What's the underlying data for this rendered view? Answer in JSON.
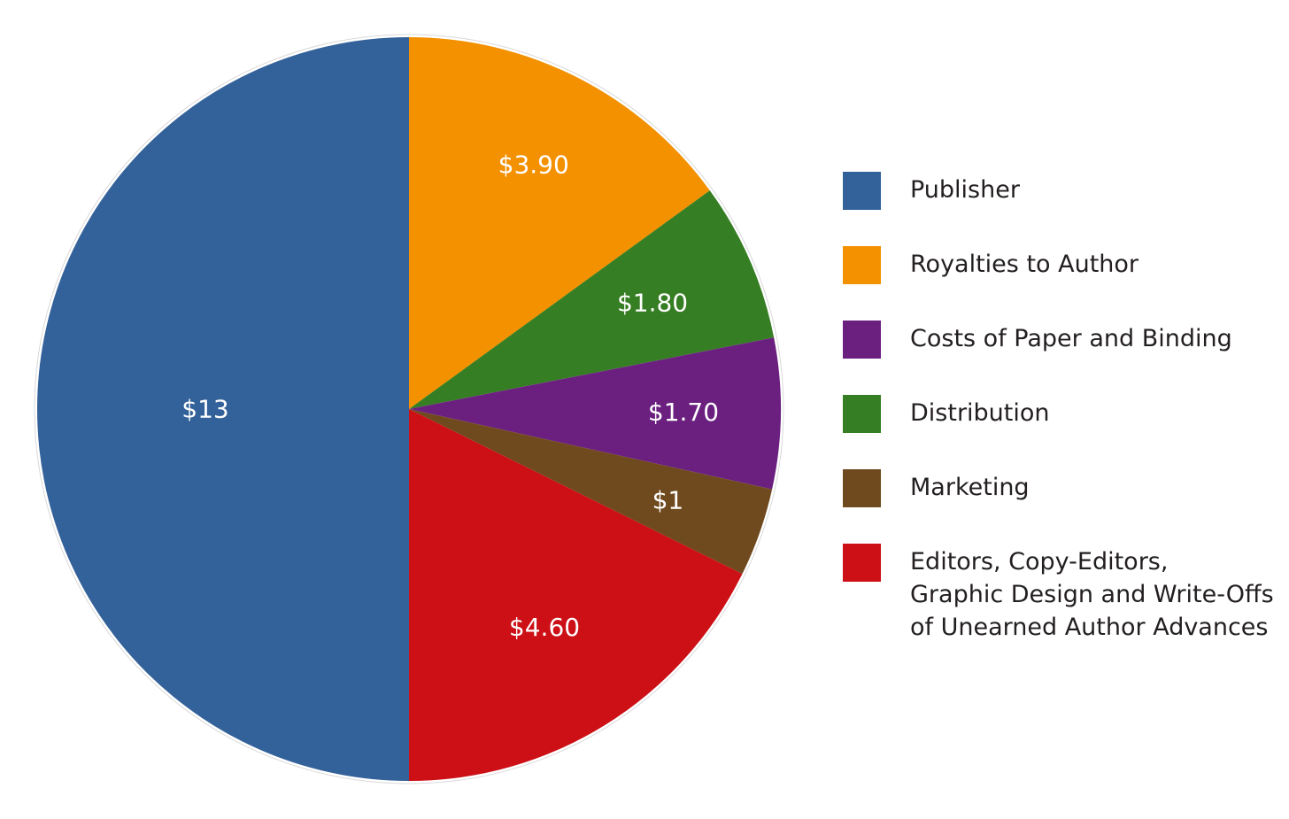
{
  "chart_data": {
    "type": "pie",
    "title": "",
    "start_angle_deg": 0,
    "direction": "clockwise",
    "legend_position": "right",
    "slices": [
      {
        "category": "Royalties to Author",
        "value": 3.9,
        "label": "$3.90",
        "color": "#f39100"
      },
      {
        "category": "Distribution",
        "value": 1.8,
        "label": "$1.80",
        "color": "#367e23"
      },
      {
        "category": "Costs of Paper and Binding",
        "value": 1.7,
        "label": "$1.70",
        "color": "#6b2080"
      },
      {
        "category": "Marketing",
        "value": 1.0,
        "label": "$1",
        "color": "#6f4a1e"
      },
      {
        "category": "Editors, Copy-Editors, Graphic Design and Write-Offs of Unearned Author Advances",
        "value": 4.6,
        "label": "$4.60",
        "color": "#cc1016"
      },
      {
        "category": "Publisher",
        "value": 13,
        "label": "$13",
        "color": "#336199"
      }
    ],
    "legend": [
      {
        "label": "Publisher",
        "color": "#336199"
      },
      {
        "label": "Royalties to Author",
        "color": "#f39100"
      },
      {
        "label": "Costs of Paper and Binding",
        "color": "#6b2080"
      },
      {
        "label": "Distribution",
        "color": "#367e23"
      },
      {
        "label": "Marketing",
        "color": "#6f4a1e"
      },
      {
        "label": "Editors, Copy-Editors,\nGraphic Design and Write-Offs\nof Unearned Author Advances",
        "color": "#cc1016"
      }
    ]
  }
}
